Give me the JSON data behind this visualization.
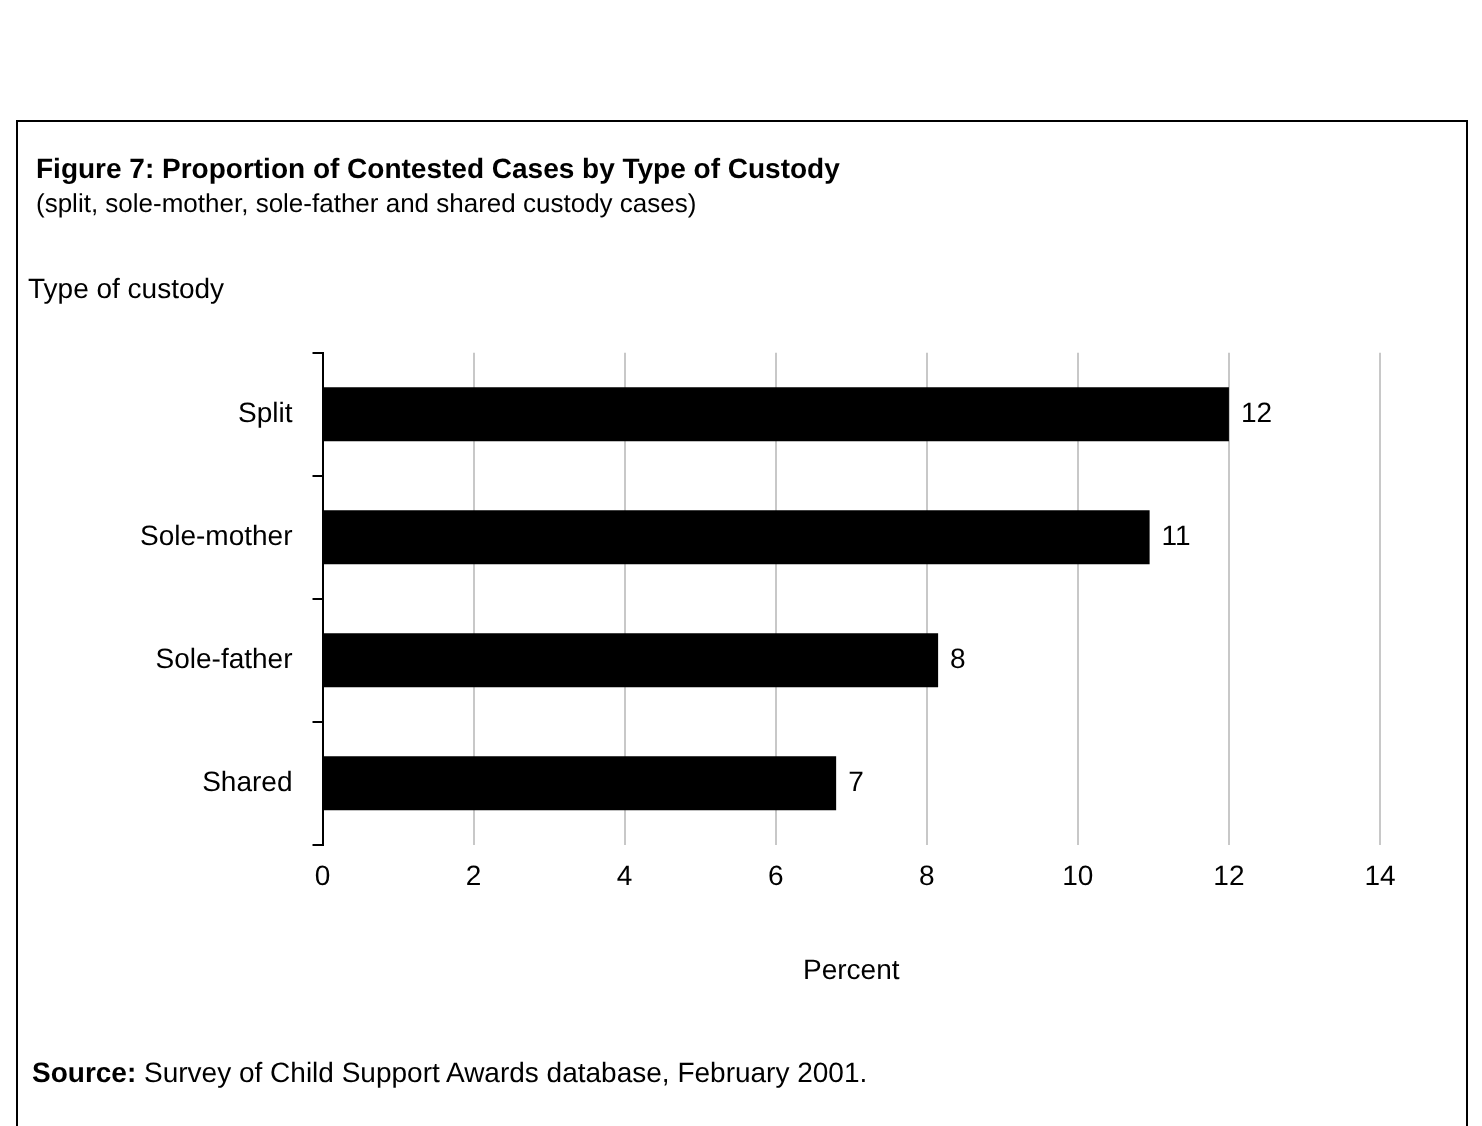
{
  "chart_data": {
    "type": "bar",
    "orientation": "horizontal",
    "title": "Figure 7: Proportion of Contested Cases by Type of Custody",
    "subtitle": "(split, sole-mother, sole-father and shared custody cases)",
    "ylabel": "Type of custody",
    "xlabel": "Percent",
    "categories": [
      "Split",
      "Sole-mother",
      "Sole-father",
      "Shared"
    ],
    "values": [
      12,
      10.95,
      8.15,
      6.8
    ],
    "value_labels": [
      "12",
      "11",
      "8",
      "7"
    ],
    "color": "#000000",
    "xlim": [
      0,
      14
    ],
    "xticks": [
      0,
      2,
      4,
      6,
      8,
      10,
      12,
      14
    ],
    "grid": "x",
    "legend": false,
    "annotations": [
      "Source: Survey of Child Support Awards database, February 2001."
    ]
  }
}
